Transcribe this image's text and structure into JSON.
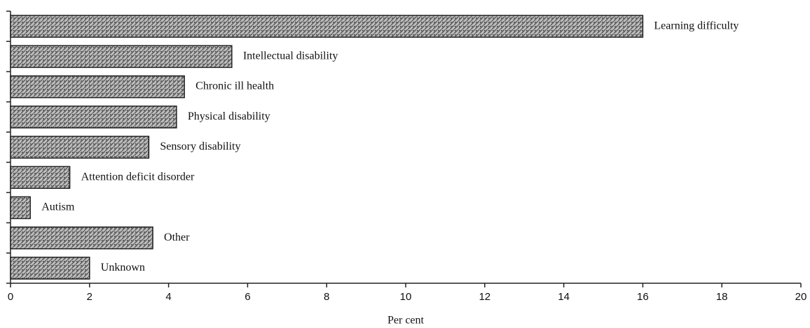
{
  "chart_data": {
    "type": "bar",
    "orientation": "horizontal",
    "x_label": "Per cent",
    "categories": [
      "Learning difficulty",
      "Intellectual disability",
      "Chronic ill health",
      "Physical disability",
      "Sensory disability",
      "Attention deficit disorder",
      "Autism",
      "Other",
      "Unknown"
    ],
    "values": [
      16,
      5.6,
      4.4,
      4.2,
      3.5,
      1.5,
      0.5,
      3.6,
      2.0
    ],
    "color": "#9a9a9a",
    "xlim": [
      0,
      20
    ],
    "xticks": [
      0,
      2,
      4,
      6,
      8,
      10,
      12,
      14,
      16,
      18,
      20
    ],
    "grid": false
  }
}
